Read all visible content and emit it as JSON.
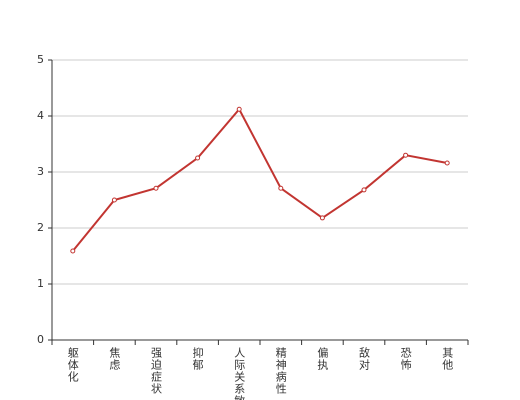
{
  "chart_data": {
    "type": "line",
    "categories": [
      "躯体化",
      "焦虑",
      "强迫症状",
      "抑郁",
      "人际关系敏感",
      "精神病性",
      "偏执",
      "敌对",
      "恐怖",
      "其他"
    ],
    "values": [
      1.59,
      2.5,
      2.71,
      3.25,
      4.12,
      2.71,
      2.18,
      2.68,
      3.3,
      3.16
    ],
    "color": "#c23531",
    "ylim": [
      0,
      5
    ],
    "yticks": [
      0,
      1,
      2,
      3,
      4,
      5
    ],
    "grid": true
  }
}
